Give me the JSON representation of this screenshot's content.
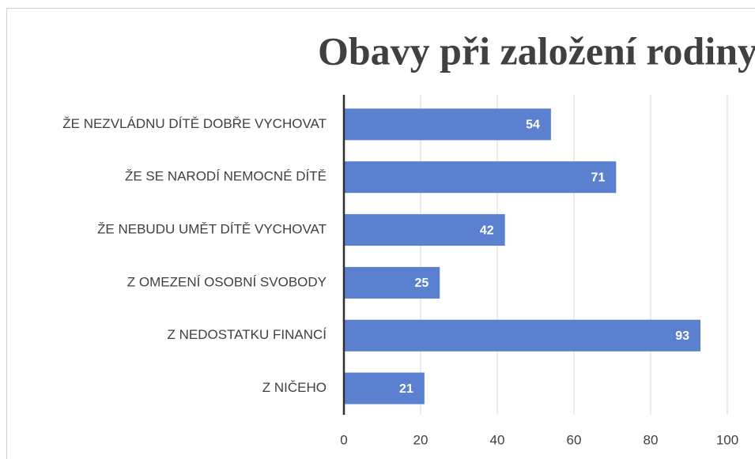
{
  "chart_data": {
    "type": "bar",
    "orientation": "horizontal",
    "title": "Obavy při založení rodiny",
    "categories": [
      "ŽE NEZVLÁDNU DÍTĚ DOBŘE VYCHOVAT",
      "ŽE SE NARODÍ NEMOCNÉ DÍTĚ",
      "ŽE NEBUDU UMĚT DÍTĚ VYCHOVAT",
      "Z OMEZENÍ OSOBNÍ SVOBODY",
      "Z NEDOSTATKU FINANCÍ",
      "Z NIČEHO"
    ],
    "values": [
      54,
      71,
      42,
      25,
      93,
      21
    ],
    "color": "#5b80cf",
    "xlim": [
      0,
      100
    ],
    "xticks": [
      0,
      20,
      40,
      60,
      80,
      100
    ],
    "grid": true
  }
}
